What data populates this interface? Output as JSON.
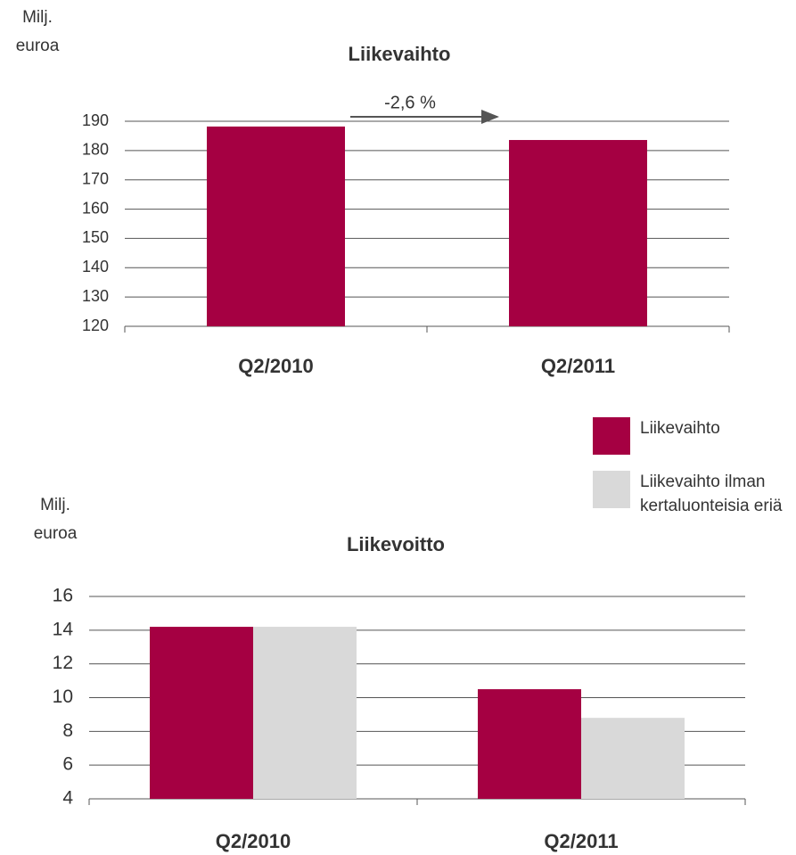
{
  "chart_data": [
    {
      "type": "bar",
      "title": "Liikevaihto",
      "ylabel": "Milj. euroa",
      "categories": [
        "Q2/2010",
        "Q2/2011"
      ],
      "values": [
        188.2,
        183.6
      ],
      "color": "#a50042",
      "ylim": [
        120,
        190
      ],
      "yticks": [
        120,
        130,
        140,
        150,
        160,
        170,
        180,
        190
      ],
      "grid": true,
      "annotation": "-2,6 %"
    },
    {
      "type": "bar",
      "title": "Liikevoitto",
      "ylabel": "Milj. euroa",
      "categories": [
        "Q2/2010",
        "Q2/2011"
      ],
      "series": [
        {
          "name": "Liikevaihto",
          "color": "#a50042",
          "values": [
            14.2,
            10.5
          ]
        },
        {
          "name": "Liikevaihto ilman kertaluonteisia eriä",
          "color": "#d9d9d9",
          "values": [
            14.2,
            8.8
          ]
        }
      ],
      "ylim": [
        4,
        16
      ],
      "yticks": [
        4,
        6,
        8,
        10,
        12,
        14,
        16
      ],
      "grid": true
    }
  ]
}
